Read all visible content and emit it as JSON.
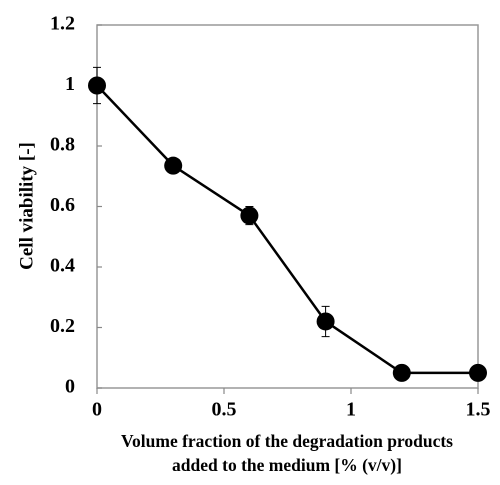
{
  "chart_data": {
    "type": "line",
    "ylabel": "Cell viability [-]",
    "xlabel": [
      "Volume fraction of the degradation products",
      "added to the medium [% (v/v)]"
    ],
    "x": [
      0,
      0.3,
      0.6,
      0.9,
      1.2,
      1.5
    ],
    "values": [
      1.0,
      0.735,
      0.57,
      0.22,
      0.05,
      0.05
    ],
    "errors": [
      0.06,
      0.015,
      0.03,
      0.05,
      0.01,
      0.01
    ],
    "color": "#000000",
    "xlim": [
      0,
      1.5
    ],
    "xticks": [
      0,
      0.5,
      1,
      1.5
    ],
    "ylim": [
      0,
      1.2
    ],
    "yticks": [
      0,
      0.2,
      0.4,
      0.6,
      0.8,
      1,
      1.2
    ]
  }
}
